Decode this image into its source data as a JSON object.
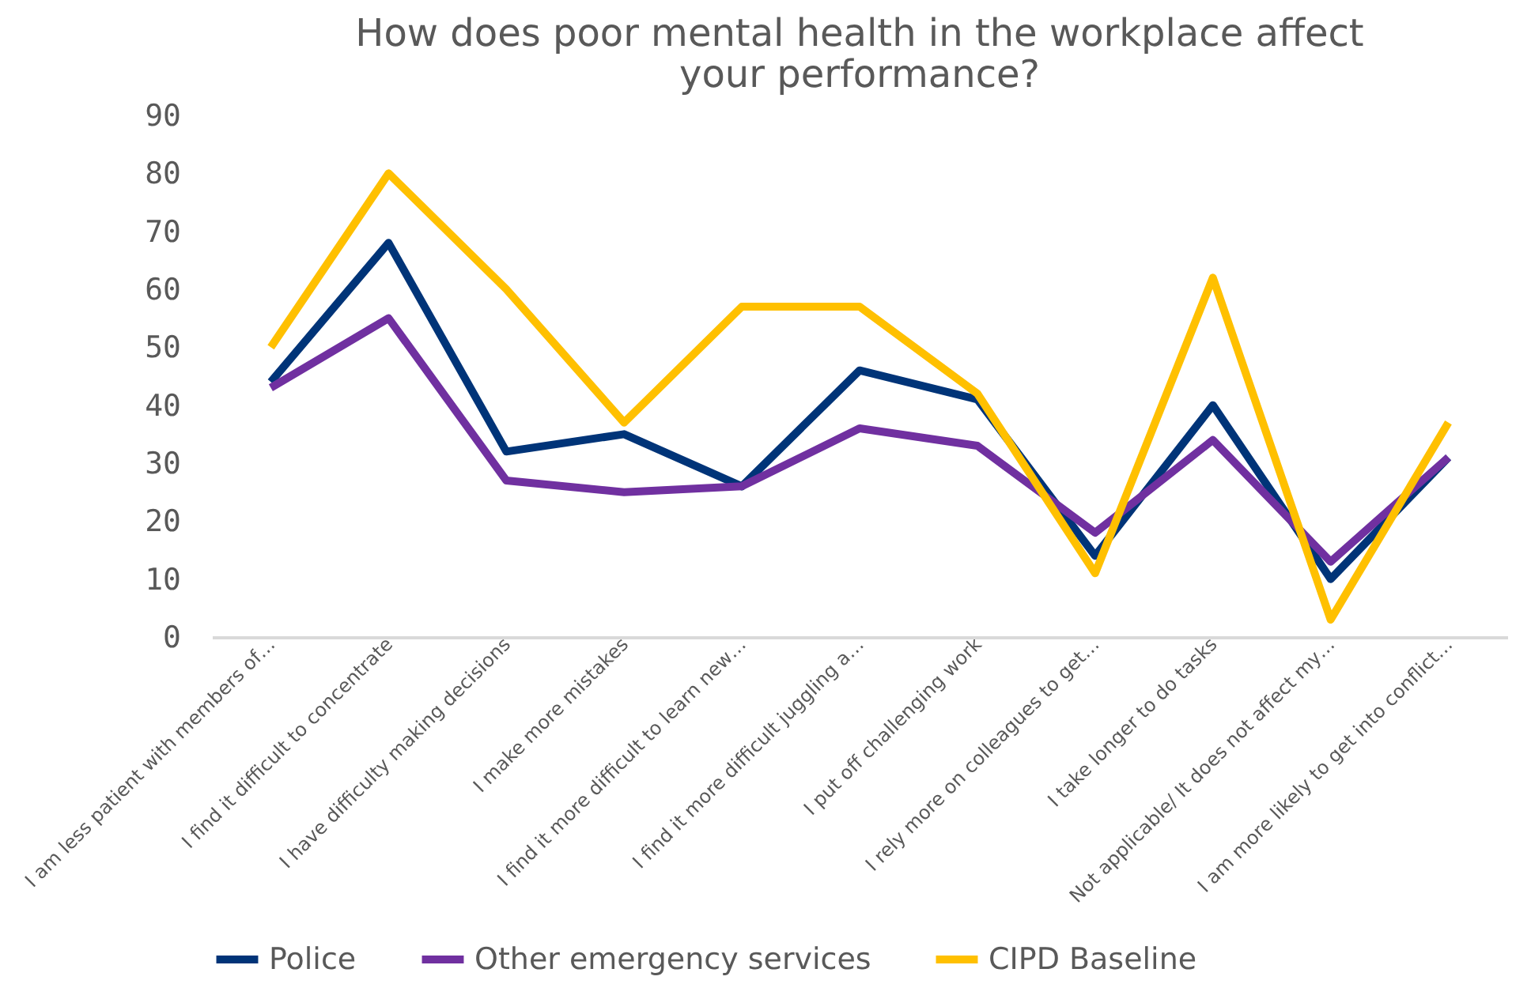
{
  "chart_data": {
    "type": "line",
    "title": [
      "How does poor mental health in the workplace affect",
      "your performance?"
    ],
    "categories": [
      "I am less patient with members of…",
      "I find it difficult to concentrate",
      "I have difficulty making decisions",
      "I make more mistakes",
      "I find it more difficult to learn new…",
      "I find it more difficult juggling a…",
      "I put off challenging work",
      "I rely more on colleagues to get…",
      "I take longer to do tasks",
      "Not applicable/ It does not affect my…",
      "I am more likely to get into conflict…"
    ],
    "series": [
      {
        "name": "Police",
        "color": "#003478",
        "values": [
          44,
          68,
          32,
          35,
          26,
          46,
          41,
          14,
          40,
          10,
          31
        ]
      },
      {
        "name": "Other emergency services",
        "color": "#7030a0",
        "values": [
          43,
          55,
          27,
          25,
          26,
          36,
          33,
          18,
          34,
          13,
          31
        ]
      },
      {
        "name": "CIPD Baseline",
        "color": "#ffc000",
        "values": [
          50,
          80,
          60,
          37,
          57,
          57,
          42,
          11,
          62,
          3,
          37
        ]
      }
    ],
    "ylim": [
      0,
      90
    ],
    "yticks": [
      0,
      10,
      20,
      30,
      40,
      50,
      60,
      70,
      80,
      90
    ],
    "grid": false,
    "legend": "bottom",
    "marker": "none",
    "line_style": "solid"
  }
}
